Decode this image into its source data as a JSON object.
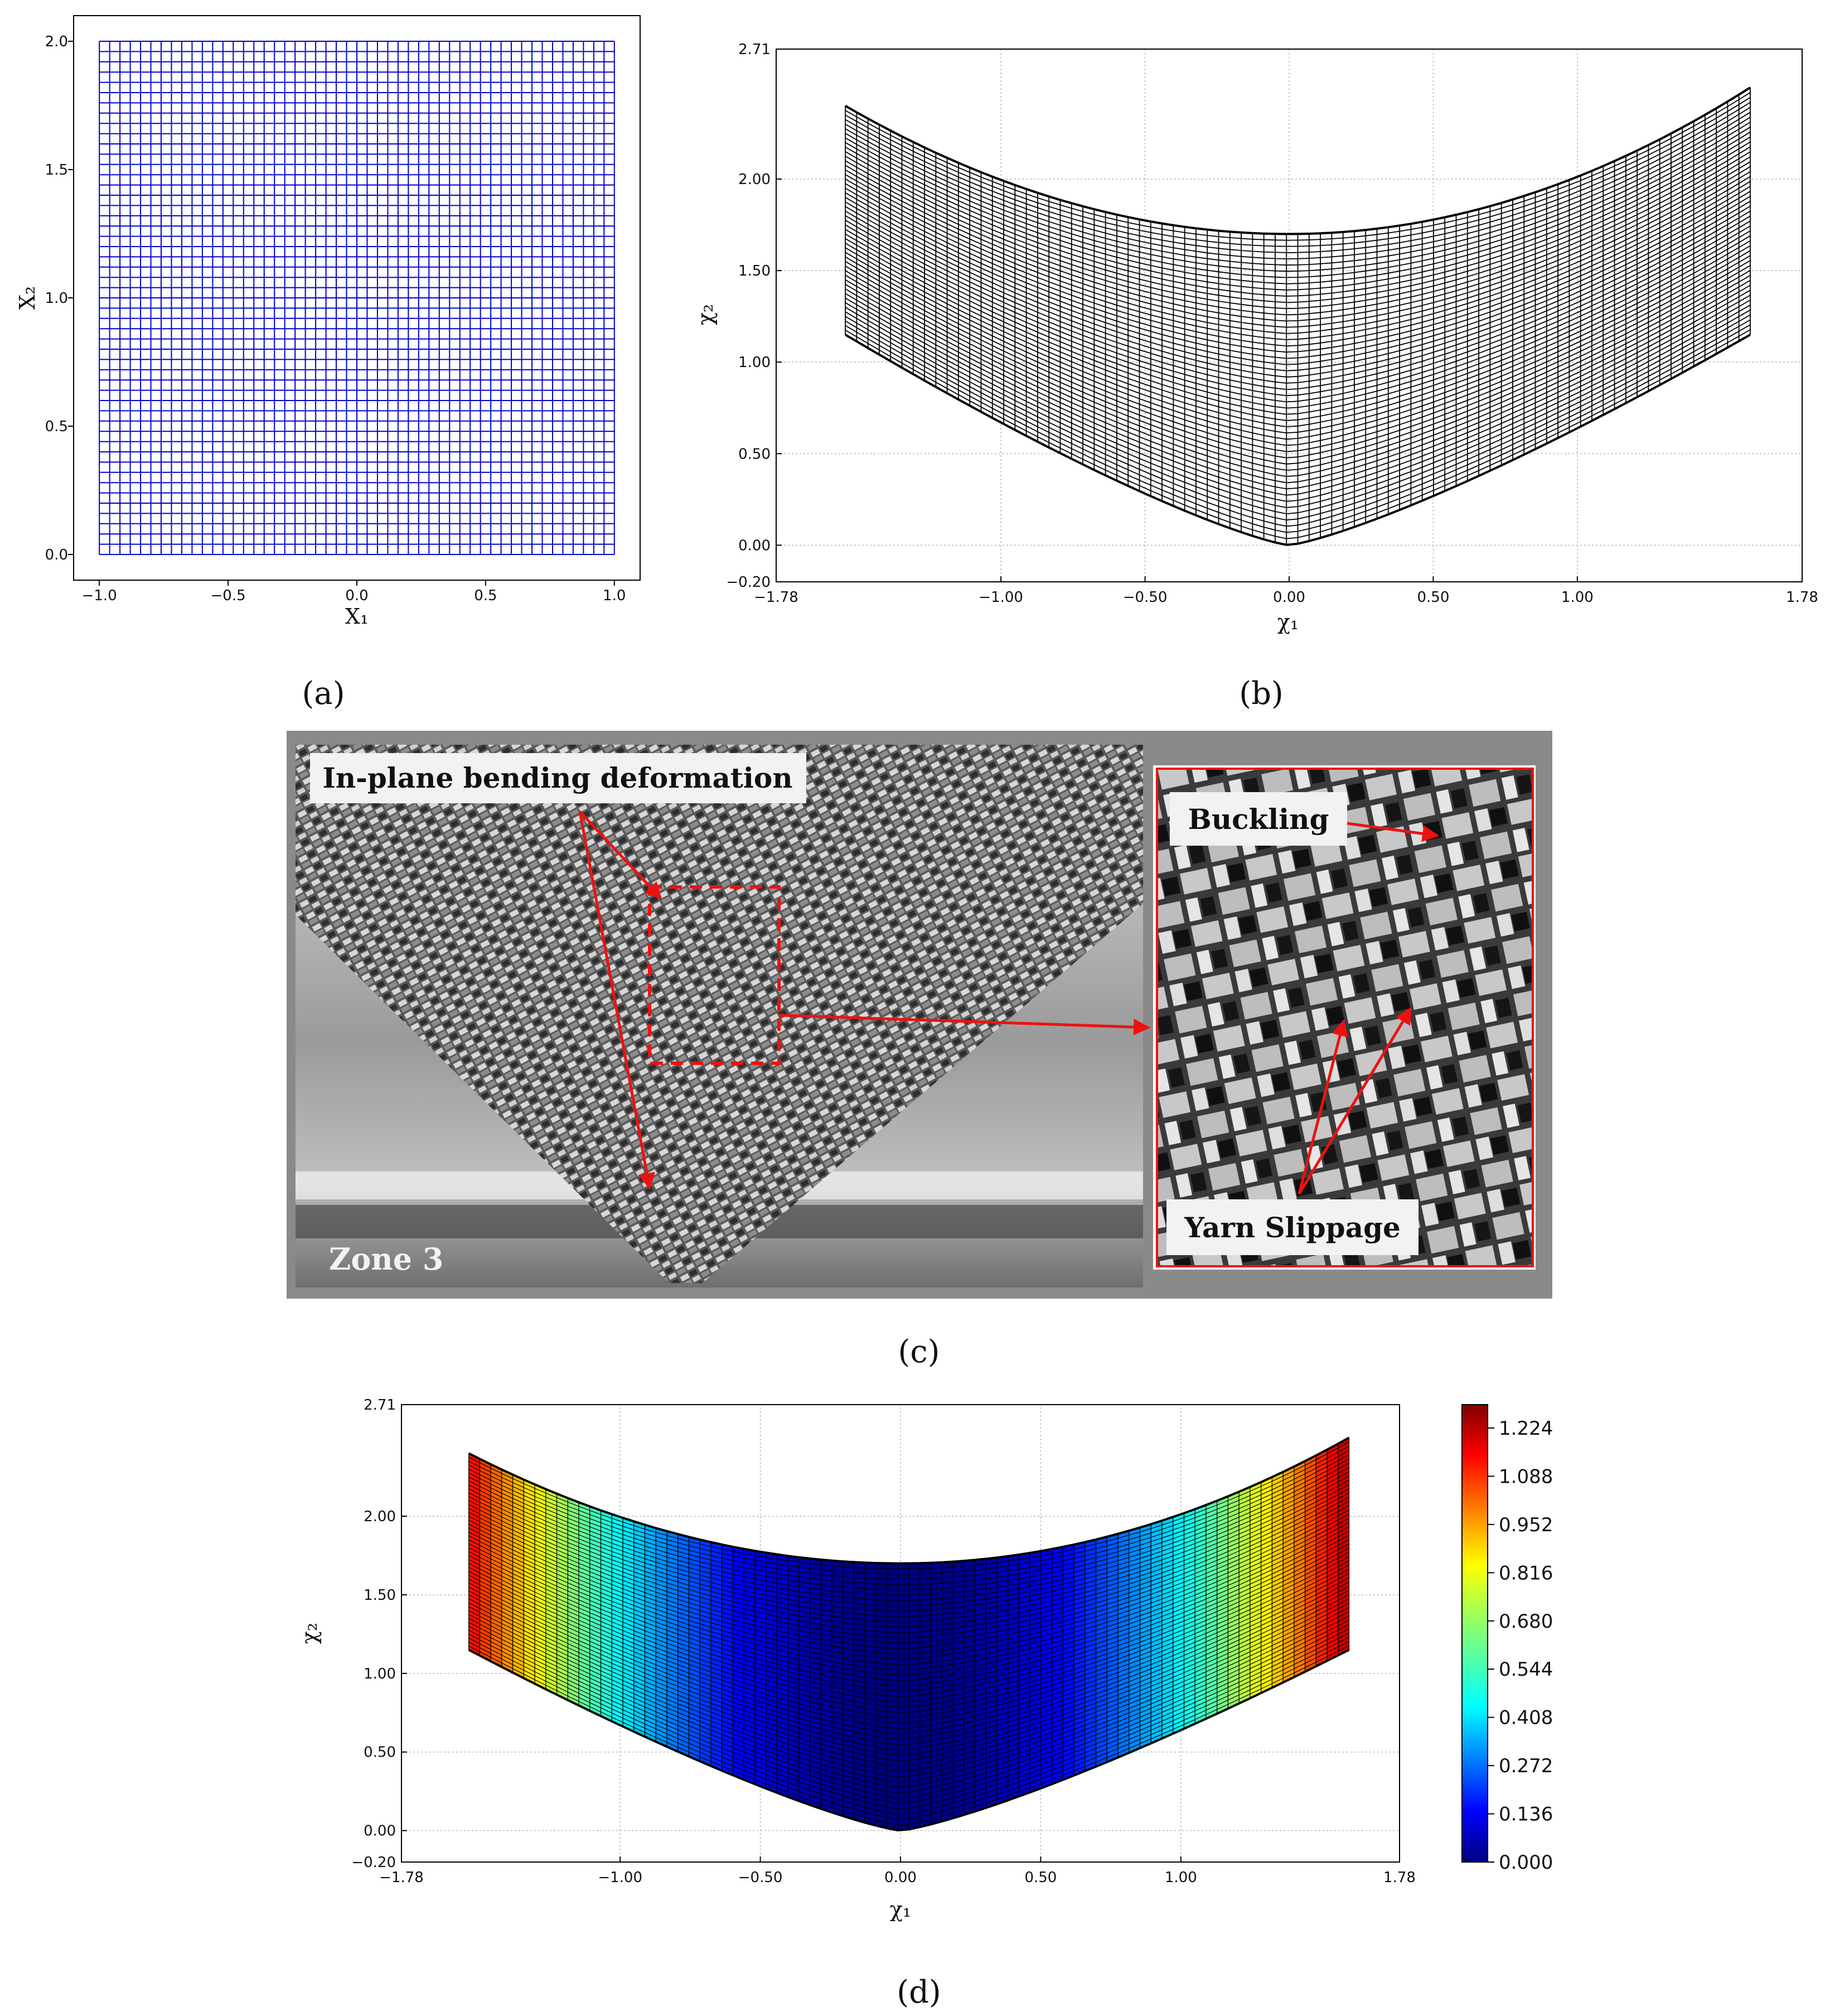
{
  "chart_data": [
    {
      "panel": "a",
      "type": "mesh",
      "caption": "(a)",
      "xlabel": "X₁",
      "ylabel": "X₂",
      "xlim": [
        -1.1,
        1.1
      ],
      "ylim": [
        -0.1,
        2.1
      ],
      "xticks": [
        "−1.0",
        "−0.5",
        "0.0",
        "0.5",
        "1.0"
      ],
      "xtick_values": [
        -1.0,
        -0.5,
        0.0,
        0.5,
        1.0
      ],
      "yticks": [
        "0.0",
        "0.5",
        "1.0",
        "1.5",
        "2.0"
      ],
      "ytick_values": [
        0.0,
        0.5,
        1.0,
        1.5,
        2.0
      ],
      "mesh": {
        "x_range": [
          -1.0,
          1.0
        ],
        "y_range": [
          0.0,
          2.0
        ],
        "divisions_x": 50,
        "divisions_y": 50
      },
      "grid": false,
      "color": "#0000cc"
    },
    {
      "panel": "b",
      "type": "mesh",
      "caption": "(b)",
      "xlabel": "χ₁",
      "ylabel": "χ₂",
      "xlim": [
        -1.78,
        1.78
      ],
      "ylim": [
        -0.2,
        2.71
      ],
      "xticks": [
        "−1.78",
        "−1.00",
        "−0.50",
        "0.00",
        "0.50",
        "1.00",
        "1.78"
      ],
      "xtick_values": [
        -1.78,
        -1.0,
        -0.5,
        0.0,
        0.5,
        1.0,
        1.78
      ],
      "yticks": [
        "−0.20",
        "0.00",
        "0.50",
        "1.00",
        "1.50",
        "2.00",
        "2.71"
      ],
      "ytick_values": [
        -0.2,
        0.0,
        0.5,
        1.0,
        1.5,
        2.0,
        2.71
      ],
      "grid": true,
      "deformed_mesh": {
        "left_edge": {
          "x": -1.54,
          "y_bottom": 1.15,
          "y_top": 2.4
        },
        "right_edge": {
          "x": 1.6,
          "y_bottom": 1.15,
          "y_top": 2.5
        },
        "top_min_y": 1.7,
        "bottom_min_y": 0.0
      },
      "color": "#000000"
    },
    {
      "panel": "d",
      "type": "mesh",
      "caption": "(d)",
      "xlabel": "χ₁",
      "ylabel": "χ₂",
      "xlim": [
        -1.78,
        1.78
      ],
      "ylim": [
        -0.2,
        2.71
      ],
      "xticks": [
        "−1.78",
        "−1.00",
        "−0.50",
        "0.00",
        "0.50",
        "1.00",
        "1.78"
      ],
      "xtick_values": [
        -1.78,
        -1.0,
        -0.5,
        0.0,
        0.5,
        1.0,
        1.78
      ],
      "yticks": [
        "−0.20",
        "0.00",
        "0.50",
        "1.00",
        "1.50",
        "2.00",
        "2.71"
      ],
      "ytick_values": [
        -0.2,
        0.0,
        0.5,
        1.0,
        1.5,
        2.0,
        2.71
      ],
      "grid": true,
      "colormap": "jet",
      "colorbar": {
        "range": [
          0.0,
          1.29
        ],
        "ticks": [
          "0.000",
          "0.136",
          "0.272",
          "0.408",
          "0.544",
          "0.680",
          "0.816",
          "0.952",
          "1.088",
          "1.224"
        ],
        "tick_values": [
          0.0,
          0.136,
          0.272,
          0.408,
          0.544,
          0.68,
          0.816,
          0.952,
          1.088,
          1.224
        ]
      },
      "deformed_mesh": {
        "left_edge": {
          "x": -1.54,
          "y_bottom": 1.15,
          "y_top": 2.4
        },
        "right_edge": {
          "x": 1.6,
          "y_bottom": 1.15,
          "y_top": 2.5
        },
        "top_min_y": 1.7,
        "bottom_min_y": 0.0
      }
    }
  ],
  "photo_panel": {
    "caption": "(c)",
    "label_bending": "In-plane bending deformation",
    "label_buckling": "Buckling",
    "label_slippage": "Yarn Slippage",
    "label_zone": "Zone 3"
  }
}
